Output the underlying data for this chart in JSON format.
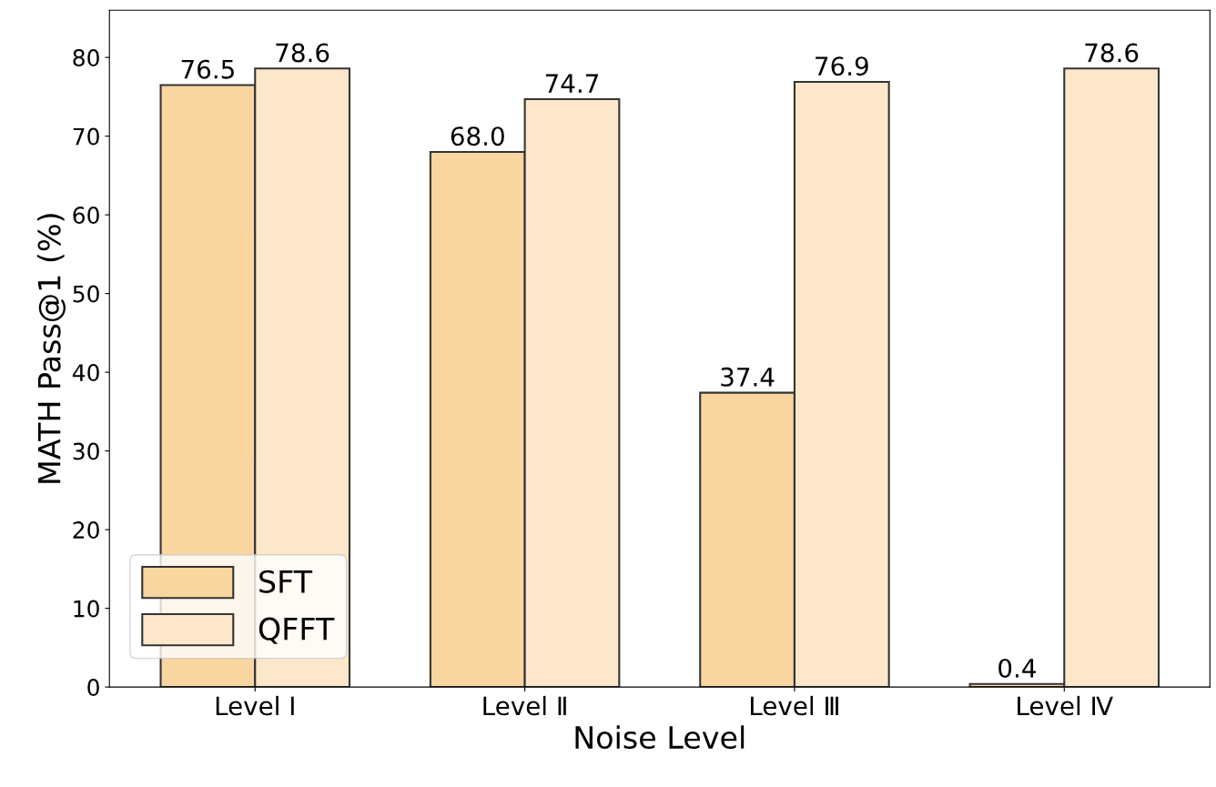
{
  "chart_data": {
    "type": "bar",
    "xlabel": "Noise Level",
    "ylabel": "MATH Pass@1 (%)",
    "categories": [
      "Level Ⅰ",
      "Level Ⅱ",
      "Level Ⅲ",
      "Level Ⅳ"
    ],
    "series": [
      {
        "name": "SFT",
        "color": "#f9d5a0",
        "values": [
          76.5,
          68.0,
          37.4,
          0.4
        ],
        "value_labels": [
          "76.5",
          "68.0",
          "37.4",
          "0.4"
        ]
      },
      {
        "name": "QFFT",
        "color": "#fce7ca",
        "values": [
          78.6,
          74.7,
          76.9,
          78.6
        ],
        "value_labels": [
          "78.6",
          "74.7",
          "76.9",
          "78.6"
        ]
      }
    ],
    "ylim": [
      0,
      86
    ],
    "yticks": [
      0,
      10,
      20,
      30,
      40,
      50,
      60,
      70,
      80
    ],
    "grid": false,
    "legend": "bottom left"
  }
}
